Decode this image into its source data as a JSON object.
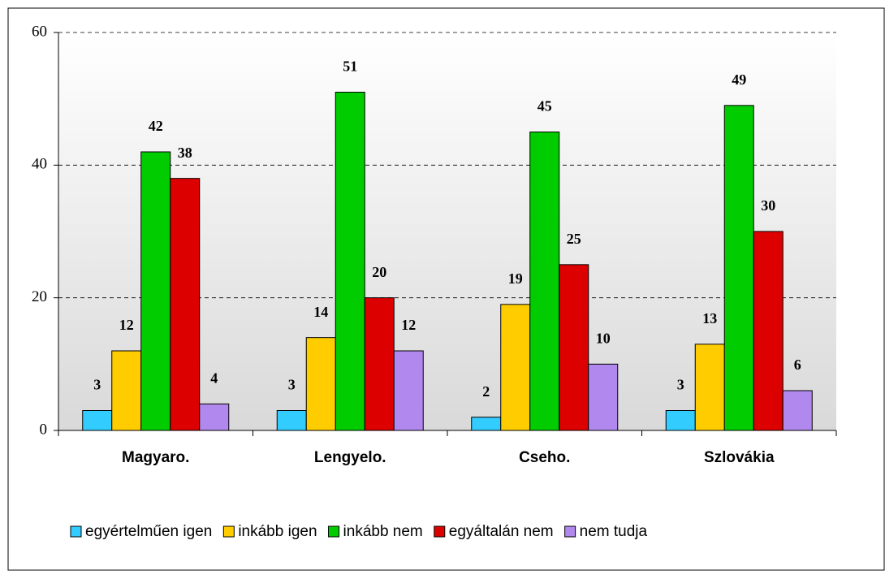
{
  "chart_data": {
    "type": "bar",
    "categories": [
      "Magyaro.",
      "Lengyelo.",
      "Cseho.",
      "Szlovákia"
    ],
    "series": [
      {
        "name": "egyértelműen igen",
        "color": "#33ccff",
        "values": [
          3,
          3,
          2,
          3
        ]
      },
      {
        "name": "inkább igen",
        "color": "#ffcc00",
        "values": [
          12,
          14,
          19,
          13
        ]
      },
      {
        "name": "inkább nem",
        "color": "#00cc00",
        "values": [
          42,
          51,
          45,
          49
        ]
      },
      {
        "name": "egyáltalán nem",
        "color": "#dd0000",
        "values": [
          38,
          20,
          25,
          30
        ]
      },
      {
        "name": "nem tudja",
        "color": "#b088ee",
        "values": [
          4,
          12,
          10,
          6
        ]
      }
    ],
    "ylim": [
      0,
      60
    ],
    "yticks": [
      0,
      20,
      40,
      60
    ],
    "grid": true,
    "legend": "bottom"
  }
}
